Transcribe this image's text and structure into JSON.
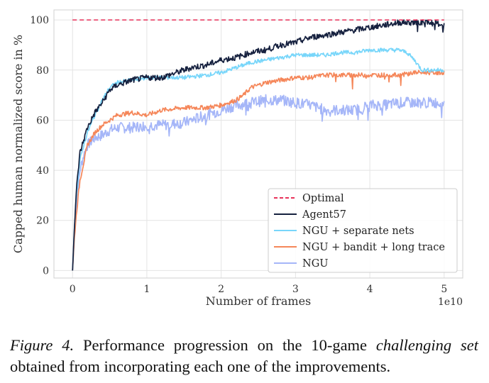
{
  "chart_data": {
    "type": "line",
    "title": "",
    "xlabel": "Number of  frames",
    "ylabel": "Capped human normalized score in %",
    "x_offset_text": "1e10",
    "xlim": [
      -0.25,
      5.25
    ],
    "ylim": [
      -3,
      104
    ],
    "xticks": [
      0,
      1,
      2,
      3,
      4,
      5
    ],
    "xtick_labels": [
      "0",
      "1",
      "2",
      "3",
      "4",
      "5"
    ],
    "yticks": [
      0,
      20,
      40,
      60,
      80,
      100
    ],
    "ytick_labels": [
      "0",
      "20",
      "40",
      "60",
      "80",
      "100"
    ],
    "grid": true,
    "legend_position": "lower-right",
    "series": [
      {
        "name": "Optimal",
        "color": "#e8325a",
        "dashed": true,
        "x": [
          0,
          5
        ],
        "y": [
          100,
          100
        ]
      },
      {
        "name": "Agent57",
        "color": "#16213f",
        "noise": 1.2,
        "x": [
          0,
          0.03,
          0.06,
          0.1,
          0.15,
          0.2,
          0.3,
          0.4,
          0.5,
          0.6,
          0.8,
          1.0,
          1.2,
          1.4,
          1.6,
          1.8,
          2.0,
          2.2,
          2.4,
          2.6,
          2.8,
          3.0,
          3.2,
          3.4,
          3.6,
          3.8,
          4.0,
          4.2,
          4.4,
          4.6,
          4.8,
          5.0
        ],
        "y": [
          0,
          20,
          35,
          47,
          52,
          57,
          63,
          67,
          72,
          74,
          76,
          77,
          77,
          79,
          81,
          82,
          84,
          85,
          87,
          88,
          90,
          91,
          93,
          94,
          95,
          96,
          97,
          98,
          99,
          99,
          99,
          98
        ]
      },
      {
        "name": "NGU + separate nets",
        "color": "#78d6fa",
        "noise": 0.8,
        "x": [
          0,
          0.03,
          0.06,
          0.1,
          0.15,
          0.2,
          0.3,
          0.4,
          0.5,
          0.6,
          0.8,
          1.0,
          1.2,
          1.5,
          1.8,
          2.0,
          2.2,
          2.4,
          2.6,
          2.8,
          3.0,
          3.2,
          3.4,
          3.6,
          3.8,
          4.0,
          4.2,
          4.4,
          4.5,
          4.6,
          4.7,
          4.8,
          5.0
        ],
        "y": [
          0,
          20,
          33,
          44,
          50,
          55,
          62,
          68,
          73,
          75,
          76,
          77,
          77,
          77,
          78,
          79,
          81,
          83,
          84,
          85,
          86,
          86,
          86,
          87,
          87,
          88,
          88,
          88,
          87,
          84,
          80,
          80,
          80
        ]
      },
      {
        "name": "NGU + bandit + long trace",
        "color": "#f5875a",
        "noise": 0.9,
        "x": [
          0,
          0.03,
          0.06,
          0.1,
          0.15,
          0.2,
          0.3,
          0.4,
          0.5,
          0.6,
          0.8,
          1.0,
          1.2,
          1.5,
          1.8,
          2.0,
          2.2,
          2.3,
          2.4,
          2.6,
          2.8,
          3.0,
          3.2,
          3.4,
          3.6,
          3.8,
          4.0,
          4.2,
          4.4,
          4.6,
          4.8,
          5.0
        ],
        "y": [
          0,
          15,
          25,
          36,
          43,
          50,
          55,
          58,
          60,
          62,
          63,
          62,
          64,
          65,
          65,
          66,
          68,
          70,
          73,
          75,
          76,
          77,
          77,
          78,
          78,
          78,
          78,
          78,
          78,
          79,
          79,
          79
        ]
      },
      {
        "name": "NGU",
        "color": "#a5b6f8",
        "noise": 2.2,
        "x": [
          0,
          0.03,
          0.06,
          0.1,
          0.15,
          0.2,
          0.3,
          0.4,
          0.5,
          0.6,
          0.8,
          1.0,
          1.2,
          1.5,
          1.8,
          2.0,
          2.2,
          2.4,
          2.6,
          2.8,
          3.0,
          3.2,
          3.4,
          3.6,
          3.8,
          4.0,
          4.2,
          4.4,
          4.6,
          4.8,
          5.0
        ],
        "y": [
          0,
          18,
          28,
          40,
          46,
          50,
          53,
          54,
          56,
          57,
          57,
          58,
          58,
          59,
          62,
          64,
          66,
          67,
          68,
          68,
          67,
          66,
          64,
          64,
          64,
          66,
          66,
          67,
          67,
          67,
          67
        ]
      }
    ]
  },
  "caption": {
    "label": "Figure 4.",
    "text_1": " Performance progression on the 10-game ",
    "emphasis": "challenging set",
    "text_2": " obtained from incorporating each one of the improvements."
  }
}
